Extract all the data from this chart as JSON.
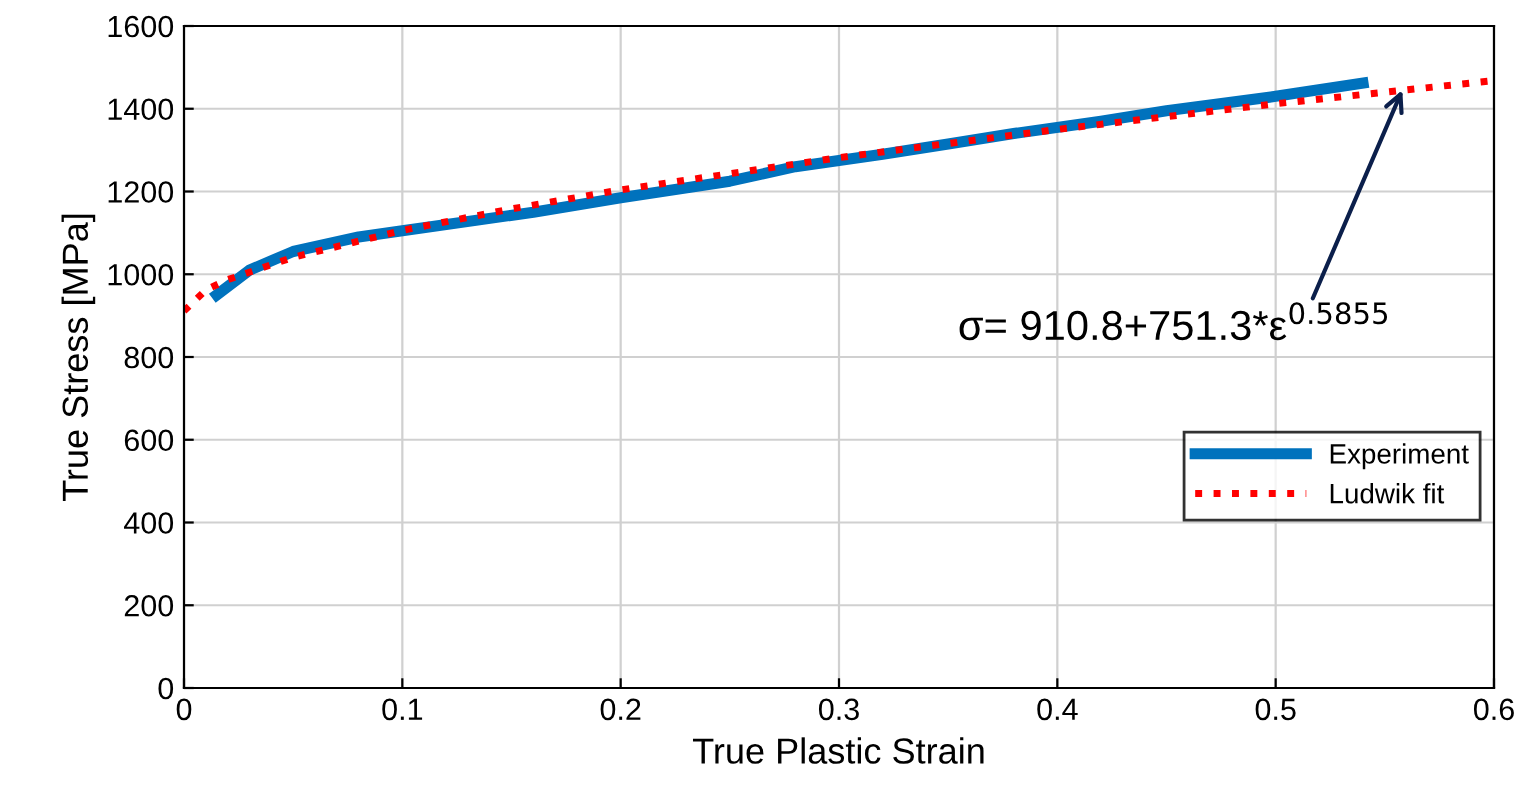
{
  "chart_data": {
    "type": "line",
    "xlabel": "True Plastic Strain",
    "ylabel": "True Stress [MPa]",
    "xlim": [
      0,
      0.6
    ],
    "xticks": [
      0,
      0.1,
      0.2,
      0.3,
      0.4,
      0.5,
      0.6
    ],
    "ylim": [
      0,
      1600
    ],
    "yticks": [
      0,
      200,
      400,
      600,
      800,
      1000,
      1200,
      1400,
      1600
    ],
    "grid": true,
    "legend": "right",
    "marker": "none",
    "series": [
      {
        "name": "Experiment",
        "color": "#0072bd",
        "line_style": "solid",
        "x": [
          0.015,
          0.03,
          0.05,
          0.08,
          0.1,
          0.16,
          0.2,
          0.25,
          0.28,
          0.32,
          0.35,
          0.38,
          0.42,
          0.45,
          0.5,
          0.54
        ],
        "values": [
          950,
          1010,
          1055,
          1090,
          1105,
          1150,
          1185,
          1225,
          1260,
          1290,
          1315,
          1340,
          1370,
          1395,
          1430,
          1462
        ]
      },
      {
        "name": "Ludwik fit",
        "color": "#ff0000",
        "line_style": "dotted",
        "x": [
          0,
          0.01,
          0.02,
          0.05,
          0.1,
          0.15,
          0.2,
          0.3,
          0.4,
          0.5,
          0.6
        ],
        "values": [
          911,
          962,
          987,
          1041,
          1106,
          1158,
          1204,
          1282,
          1350,
          1412,
          1468
        ]
      }
    ],
    "annotations": [
      {
        "text": "σ= 910.8+751.3*ε$^{0.5855}$",
        "x": 0.558,
        "y": 1445
      }
    ]
  }
}
